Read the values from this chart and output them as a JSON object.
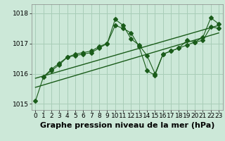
{
  "background_color": "#cce8d8",
  "grid_color": "#a8cdb8",
  "line_color": "#1a5c1a",
  "xlim": [
    -0.5,
    23.5
  ],
  "ylim": [
    1014.8,
    1018.3
  ],
  "yticks": [
    1015,
    1016,
    1017,
    1018
  ],
  "xticks": [
    0,
    1,
    2,
    3,
    4,
    5,
    6,
    7,
    8,
    9,
    10,
    11,
    12,
    13,
    14,
    15,
    16,
    17,
    18,
    19,
    20,
    21,
    22,
    23
  ],
  "series1_x": [
    0,
    1,
    2,
    3,
    4,
    5,
    6,
    7,
    8,
    9,
    10,
    11,
    12,
    13,
    14,
    15,
    16,
    17,
    18,
    19,
    20,
    21,
    22,
    23
  ],
  "series1_y": [
    1015.1,
    1015.9,
    1016.1,
    1016.3,
    1016.55,
    1016.65,
    1016.7,
    1016.75,
    1016.9,
    1017.0,
    1017.8,
    1017.6,
    1017.15,
    1016.95,
    1016.6,
    1016.0,
    1016.65,
    1016.75,
    1016.85,
    1016.95,
    1017.05,
    1017.1,
    1017.55,
    1017.5
  ],
  "series2_x": [
    1,
    2,
    3,
    4,
    5,
    6,
    7,
    8,
    9,
    10,
    11,
    12,
    13,
    14,
    15,
    16,
    17,
    18,
    19,
    20,
    21,
    22,
    23
  ],
  "series2_y": [
    1015.9,
    1016.15,
    1016.35,
    1016.55,
    1016.6,
    1016.65,
    1016.7,
    1016.85,
    1017.0,
    1017.6,
    1017.5,
    1017.35,
    1016.9,
    1016.1,
    1015.95,
    1016.65,
    1016.75,
    1016.85,
    1017.1,
    1017.05,
    1017.2,
    1017.85,
    1017.65
  ],
  "trend_x": [
    0,
    23
  ],
  "trend_y": [
    1015.55,
    1017.35
  ],
  "trend2_x": [
    0,
    23
  ],
  "trend2_y": [
    1015.85,
    1017.6
  ],
  "xlabel": "Graphe pression niveau de la mer (hPa)",
  "xlabel_fontsize": 8,
  "tick_fontsize": 6.5,
  "markersize": 3.0
}
